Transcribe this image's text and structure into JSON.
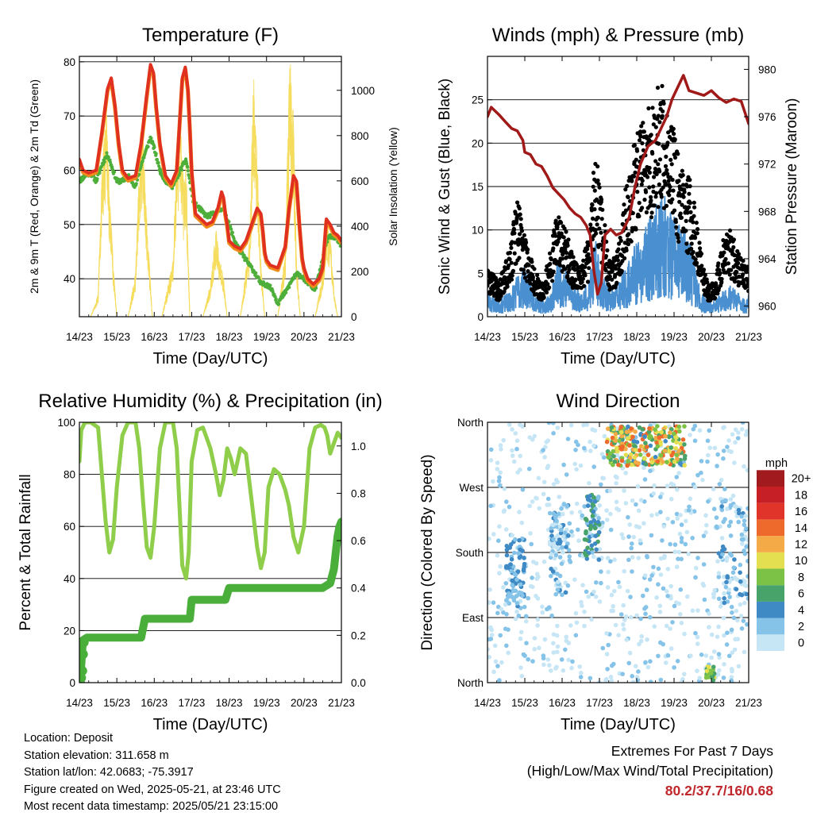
{
  "chart_data": [
    {
      "type": "line",
      "title": "Temperature (F)",
      "xlabel": "Time (Day/UTC)",
      "ylabel": "2m & 9m T (Red, Orange) & 2m Td (Green)",
      "ylabel_right": "Solar Insolation (Yellow)",
      "x_ticks": [
        "14/23",
        "15/23",
        "16/23",
        "17/23",
        "18/23",
        "19/23",
        "20/23",
        "21/23"
      ],
      "xlim": [
        0,
        7
      ],
      "ylim": [
        33,
        81
      ],
      "ylim_right": [
        0,
        1150
      ],
      "y_ticks": [
        40,
        50,
        60,
        70,
        80
      ],
      "y_ticks_right": [
        0,
        200,
        400,
        600,
        800,
        1000
      ],
      "grid": true,
      "colors": {
        "t2m": "#e03020",
        "t9m": "#f08a1c",
        "td2m": "#4daf3a",
        "solar": "#f5dc5a"
      },
      "series": [
        {
          "key": "t2m",
          "x": [
            0,
            0.1,
            0.25,
            0.45,
            0.6,
            0.75,
            0.85,
            0.95,
            1.05,
            1.15,
            1.3,
            1.5,
            1.65,
            1.8,
            1.9,
            1.98,
            2.05,
            2.15,
            2.3,
            2.45,
            2.6,
            2.75,
            2.83,
            2.9,
            2.95,
            3.0,
            3.1,
            3.25,
            3.4,
            3.55,
            3.7,
            3.8,
            3.85,
            3.9,
            3.95,
            4.0,
            4.15,
            4.3,
            4.45,
            4.6,
            4.75,
            4.85,
            4.9,
            4.95,
            5.0,
            5.1,
            5.3,
            5.5,
            5.6,
            5.72,
            5.8,
            5.88,
            5.95,
            6.0,
            6.1,
            6.25,
            6.4,
            6.5,
            6.6,
            6.7,
            6.8,
            6.9,
            7.0
          ],
          "values": [
            62,
            60,
            59.5,
            60,
            67,
            75,
            77,
            72,
            65,
            60,
            58.5,
            59,
            65,
            74,
            79.5,
            78,
            72,
            65,
            59,
            57.5,
            60,
            77,
            79,
            75,
            68,
            60,
            52,
            51,
            50,
            50.5,
            53,
            56,
            55,
            52,
            50,
            47,
            46,
            45.5,
            47,
            50,
            53,
            52,
            49,
            45,
            43.5,
            42.5,
            42,
            46,
            53,
            59,
            58,
            50,
            44,
            42,
            40,
            39,
            40,
            42,
            51,
            50,
            48.5,
            48,
            47
          ]
        },
        {
          "key": "td2m",
          "x": [
            0,
            0.15,
            0.3,
            0.45,
            0.6,
            0.75,
            0.85,
            1.0,
            1.15,
            1.3,
            1.5,
            1.65,
            1.8,
            1.9,
            2.0,
            2.15,
            2.3,
            2.5,
            2.7,
            2.85,
            2.95,
            3.05,
            3.2,
            3.4,
            3.6,
            3.8,
            3.9,
            4.0,
            4.15,
            4.3,
            4.5,
            4.7,
            4.85,
            5.0,
            5.15,
            5.3,
            5.45,
            5.55,
            5.7,
            5.85,
            6.0,
            6.15,
            6.3,
            6.45,
            6.6,
            6.75,
            6.9,
            7.0
          ],
          "values": [
            58,
            59,
            59.5,
            58,
            61,
            63,
            61,
            58,
            58,
            59,
            57,
            61,
            64,
            66,
            64,
            60,
            58,
            57,
            60,
            62,
            58,
            54,
            53,
            51.5,
            52,
            53,
            52,
            50,
            47,
            45,
            43,
            41,
            39,
            39,
            38,
            35.5,
            37,
            38,
            40,
            41,
            40,
            39,
            38,
            42,
            47,
            48,
            47,
            46
          ]
        },
        {
          "key": "solar",
          "x": [
            0,
            0.3,
            0.5,
            0.6,
            0.72,
            0.8,
            0.9,
            1.0,
            1.3,
            1.5,
            1.62,
            1.7,
            1.78,
            1.85,
            1.95,
            2.2,
            2.5,
            2.6,
            2.7,
            2.78,
            2.85,
            2.95,
            3.3,
            3.5,
            3.65,
            3.75,
            3.85,
            3.95,
            4.3,
            4.55,
            4.65,
            4.75,
            4.85,
            4.95,
            5.3,
            5.5,
            5.62,
            5.72,
            5.8,
            5.9,
            6.3,
            6.5,
            6.6,
            6.72,
            6.8,
            6.9,
            7.0
          ],
          "values": [
            0,
            0,
            100,
            700,
            950,
            600,
            250,
            0,
            0,
            200,
            800,
            900,
            500,
            300,
            0,
            0,
            250,
            750,
            950,
            600,
            700,
            0,
            0,
            150,
            400,
            250,
            180,
            0,
            0,
            350,
            1100,
            700,
            250,
            0,
            0,
            300,
            1180,
            900,
            250,
            0,
            0,
            200,
            450,
            350,
            120,
            0,
            0
          ]
        }
      ]
    },
    {
      "type": "scatter",
      "title": "Winds (mph) & Pressure (mb)",
      "xlabel": "Time (Day/UTC)",
      "ylabel": "Sonic Wind & Gust (Blue, Black)",
      "ylabel_right": "Station Pressure (Maroon)",
      "x_ticks": [
        "14/23",
        "15/23",
        "16/23",
        "17/23",
        "18/23",
        "19/23",
        "20/23",
        "21/23"
      ],
      "xlim": [
        0,
        7
      ],
      "ylim": [
        0,
        30
      ],
      "ylim_right": [
        959.1,
        981.1
      ],
      "y_ticks": [
        0,
        5,
        10,
        15,
        20,
        25
      ],
      "y_ticks_right": [
        960,
        964,
        968,
        972,
        976,
        980
      ],
      "grid": true,
      "colors": {
        "wind": "#4a90d0",
        "gust": "#000000",
        "pressure": "#a01a1a"
      },
      "wind_envelope": {
        "x": [
          0,
          0.3,
          0.6,
          0.8,
          1.0,
          1.3,
          1.5,
          1.7,
          1.9,
          2.1,
          2.3,
          2.5,
          2.7,
          2.9,
          3.1,
          3.3,
          3.5,
          3.7,
          3.9,
          4.1,
          4.3,
          4.5,
          4.7,
          4.9,
          5.1,
          5.3,
          5.5,
          5.7,
          5.9,
          6.1,
          6.3,
          6.5,
          6.7,
          6.9,
          7.0
        ],
        "values": [
          3,
          2,
          3,
          5,
          6,
          3,
          2,
          3,
          7,
          6,
          4,
          3,
          4,
          9,
          5,
          3,
          4,
          6,
          8,
          9,
          11,
          13,
          15,
          13,
          11,
          10,
          8,
          3,
          2,
          2,
          3,
          4,
          3,
          2,
          3
        ]
      },
      "gust_envelope": {
        "x": [
          0,
          0.3,
          0.6,
          0.8,
          1.0,
          1.3,
          1.5,
          1.7,
          1.9,
          2.1,
          2.3,
          2.5,
          2.7,
          2.9,
          3.1,
          3.3,
          3.5,
          3.7,
          3.9,
          4.1,
          4.3,
          4.5,
          4.7,
          4.9,
          5.1,
          5.3,
          5.5,
          5.7,
          5.9,
          6.1,
          6.3,
          6.5,
          6.7,
          6.9,
          7.0
        ],
        "values": [
          6,
          4,
          8,
          14,
          10,
          5,
          4,
          8,
          13,
          10,
          7,
          6,
          9,
          20,
          12,
          6,
          8,
          15,
          20,
          22,
          24,
          26,
          28,
          24,
          19,
          17,
          15,
          8,
          4,
          4,
          9,
          10,
          8,
          6,
          6
        ]
      },
      "series": [
        {
          "key": "pressure",
          "x": [
            0,
            0.1,
            0.3,
            0.5,
            0.65,
            0.8,
            0.95,
            1.0,
            1.15,
            1.3,
            1.45,
            1.6,
            1.75,
            1.9,
            2.05,
            2.2,
            2.35,
            2.5,
            2.65,
            2.75,
            2.85,
            2.95,
            3.05,
            3.15,
            3.3,
            3.45,
            3.6,
            3.8,
            3.95,
            4.1,
            4.3,
            4.5,
            4.65,
            4.8,
            4.95,
            5.1,
            5.25,
            5.4,
            5.6,
            5.8,
            6.0,
            6.2,
            6.4,
            6.6,
            6.8,
            7.0
          ],
          "values": [
            976,
            976.8,
            976.2,
            975.5,
            975,
            974.8,
            974,
            973,
            972.8,
            972,
            971.8,
            971,
            970,
            969.5,
            969,
            968.3,
            967.8,
            967.5,
            966.8,
            966,
            963,
            961,
            962,
            966,
            966.5,
            966,
            966.2,
            967.5,
            970,
            972,
            973.5,
            974,
            975,
            976,
            977.5,
            978.5,
            979.5,
            978.2,
            978,
            977.8,
            978.2,
            977.6,
            977.2,
            977.5,
            977.3,
            975.4
          ]
        }
      ]
    },
    {
      "type": "line",
      "title": "Relative Humidity (%) & Precipitation (in)",
      "xlabel": "Time (Day/UTC)",
      "ylabel": "Percent & Total Rainfall",
      "x_ticks": [
        "14/23",
        "15/23",
        "16/23",
        "17/23",
        "18/23",
        "19/23",
        "20/23",
        "21/23"
      ],
      "xlim": [
        0,
        7
      ],
      "ylim": [
        0,
        100
      ],
      "ylim_right": [
        0,
        1.1
      ],
      "y_ticks": [
        0,
        20,
        40,
        60,
        80,
        100
      ],
      "y_ticks_right": [
        "0.0",
        "0.2",
        "0.4",
        "0.6",
        "0.8",
        "1.0"
      ],
      "grid": true,
      "colors": {
        "rh": "#8fce4a",
        "precip": "#4aae3a"
      },
      "series": [
        {
          "key": "rh",
          "x": [
            0,
            0.05,
            0.15,
            0.3,
            0.5,
            0.6,
            0.7,
            0.8,
            0.9,
            1.0,
            1.15,
            1.3,
            1.5,
            1.6,
            1.7,
            1.8,
            1.9,
            2.0,
            2.15,
            2.3,
            2.5,
            2.6,
            2.75,
            2.85,
            2.92,
            3.0,
            3.15,
            3.3,
            3.5,
            3.65,
            3.75,
            3.85,
            3.95,
            4.05,
            4.15,
            4.3,
            4.45,
            4.6,
            4.75,
            4.85,
            4.95,
            5.05,
            5.2,
            5.35,
            5.5,
            5.6,
            5.72,
            5.85,
            6.0,
            6.15,
            6.3,
            6.45,
            6.55,
            6.62,
            6.7,
            6.8,
            6.9,
            7.0
          ],
          "values": [
            85,
            97,
            100,
            100,
            98,
            80,
            62,
            50,
            55,
            75,
            95,
            100,
            100,
            90,
            70,
            52,
            48,
            60,
            90,
            100,
            100,
            90,
            45,
            40,
            50,
            85,
            97,
            98,
            90,
            80,
            72,
            78,
            90,
            86,
            80,
            90,
            88,
            70,
            52,
            44,
            50,
            75,
            82,
            80,
            74,
            68,
            56,
            50,
            60,
            90,
            98,
            99,
            98,
            95,
            88,
            92,
            96,
            94
          ]
        },
        {
          "key": "precip",
          "x": [
            0,
            0.02,
            0.04,
            0.08,
            0.1,
            0.2,
            0.5,
            1.0,
            1.5,
            1.65,
            1.75,
            2.0,
            2.5,
            2.95,
            3.0,
            3.3,
            3.6,
            3.9,
            4.0,
            4.5,
            5.0,
            5.5,
            6.0,
            6.5,
            6.6,
            6.7,
            6.8,
            6.85,
            6.9,
            6.95,
            7.0
          ],
          "values": [
            0,
            0.02,
            0.05,
            0.15,
            0.18,
            0.19,
            0.19,
            0.19,
            0.19,
            0.19,
            0.27,
            0.27,
            0.27,
            0.27,
            0.35,
            0.35,
            0.35,
            0.35,
            0.4,
            0.4,
            0.4,
            0.4,
            0.4,
            0.4,
            0.41,
            0.42,
            0.48,
            0.55,
            0.62,
            0.66,
            0.68
          ]
        }
      ]
    },
    {
      "type": "scatter",
      "title": "Wind Direction",
      "xlabel": "Time (Day/UTC)",
      "ylabel": "Direction (Colored By Speed)",
      "x_ticks": [
        "14/23",
        "15/23",
        "16/23",
        "17/23",
        "18/23",
        "19/23",
        "20/23",
        "21/23"
      ],
      "xlim": [
        0,
        7
      ],
      "ylim": [
        0,
        360
      ],
      "y_ticks": [
        {
          "value": 0,
          "label": "North"
        },
        {
          "value": 90,
          "label": "East"
        },
        {
          "value": 180,
          "label": "South"
        },
        {
          "value": 270,
          "label": "West"
        },
        {
          "value": 360,
          "label": "North"
        }
      ],
      "grid": true,
      "colorbar": {
        "title": "mph",
        "labels": [
          "0",
          "2",
          "4",
          "6",
          "8",
          "10",
          "12",
          "14",
          "16",
          "18",
          "20+"
        ],
        "colors": [
          "#c6e5f5",
          "#86c3e8",
          "#3f8ac5",
          "#47a36a",
          "#7cc246",
          "#e3df50",
          "#f5aa48",
          "#ee6a2c",
          "#e0332a",
          "#c61f26",
          "#a01a1e"
        ]
      },
      "clusters": [
        {
          "x": [
            0,
            6.99
          ],
          "dir": [
            0,
            360
          ],
          "speed": [
            0,
            3
          ],
          "count": 700
        },
        {
          "x": [
            0.5,
            1.0
          ],
          "dir": [
            100,
            200
          ],
          "speed": [
            2,
            6
          ],
          "count": 90
        },
        {
          "x": [
            1.7,
            2.2
          ],
          "dir": [
            120,
            250
          ],
          "speed": [
            1,
            5
          ],
          "count": 80
        },
        {
          "x": [
            2.6,
            3.0
          ],
          "dir": [
            170,
            260
          ],
          "speed": [
            3,
            8
          ],
          "count": 70
        },
        {
          "x": [
            3.2,
            5.3
          ],
          "dir": [
            300,
            355
          ],
          "speed": [
            5,
            16
          ],
          "count": 260
        },
        {
          "x": [
            5.85,
            6.1
          ],
          "dir": [
            2,
            22
          ],
          "speed": [
            6,
            11
          ],
          "count": 30
        },
        {
          "x": [
            6.2,
            6.99
          ],
          "dir": [
            110,
            260
          ],
          "speed": [
            1,
            5
          ],
          "count": 70
        }
      ]
    }
  ],
  "footer": {
    "location": "Location: Deposit",
    "elevation": "Station elevation: 311.658 m",
    "latlon": "Station lat/lon: 42.0683; -75.3917",
    "created": "Figure created on Wed, 2025-05-21, at 23:46 UTC",
    "recent": "Most recent data timestamp: 2025/05/21 23:15:00"
  },
  "extremes": {
    "title": "Extremes For Past 7 Days",
    "subtitle": "(High/Low/Max Wind/Total Precipitation)",
    "values": "80.2/37.7/16/0.68"
  }
}
